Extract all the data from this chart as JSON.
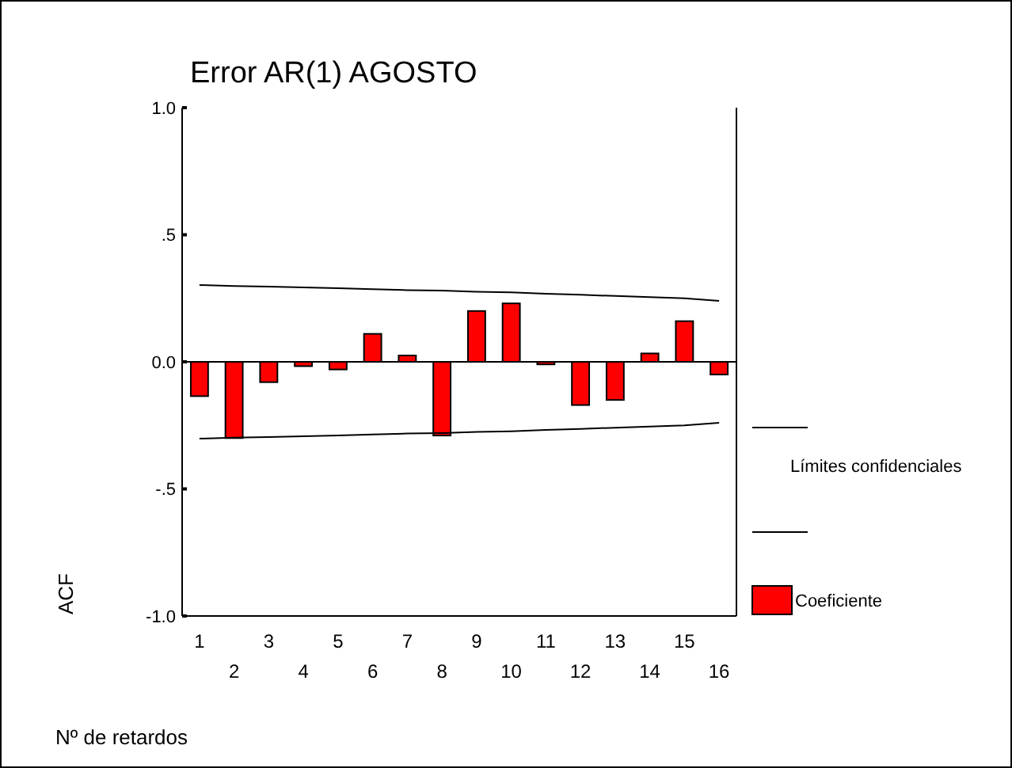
{
  "chart_data": {
    "type": "bar",
    "title": "Error AR(1) AGOSTO",
    "xlabel": "Nº de retardos",
    "ylabel": "ACF",
    "categories": [
      "1",
      "2",
      "3",
      "4",
      "5",
      "6",
      "7",
      "8",
      "9",
      "10",
      "11",
      "12",
      "13",
      "14",
      "15",
      "16"
    ],
    "series": [
      {
        "name": "Coeficiente",
        "color": "#ff0000",
        "values": [
          -0.135,
          -0.3,
          -0.08,
          -0.017,
          -0.03,
          0.11,
          0.025,
          -0.29,
          0.2,
          0.23,
          -0.01,
          -0.17,
          -0.15,
          0.033,
          0.16,
          -0.05
        ]
      },
      {
        "name": "Límites confidenciales",
        "type": "line",
        "color": "#000000",
        "values": [
          0.302,
          0.298,
          0.296,
          0.293,
          0.29,
          0.286,
          0.282,
          0.28,
          0.276,
          0.273,
          0.268,
          0.264,
          0.259,
          0.255,
          0.25,
          0.24
        ]
      },
      {
        "type": "line",
        "color": "#000000",
        "values": [
          -0.302,
          -0.298,
          -0.296,
          -0.293,
          -0.29,
          -0.286,
          -0.282,
          -0.28,
          -0.276,
          -0.273,
          -0.268,
          -0.264,
          -0.259,
          -0.255,
          -0.25,
          -0.24
        ]
      }
    ],
    "ylim": [
      -1,
      1
    ],
    "yticks": [
      {
        "value": -1,
        "label": "-1.0"
      },
      {
        "value": -0.5,
        "label": "-.5"
      },
      {
        "value": 0,
        "label": "0.0"
      },
      {
        "value": 0.5,
        "label": ".5"
      },
      {
        "value": 1,
        "label": "1.0"
      }
    ],
    "legend": "right"
  }
}
